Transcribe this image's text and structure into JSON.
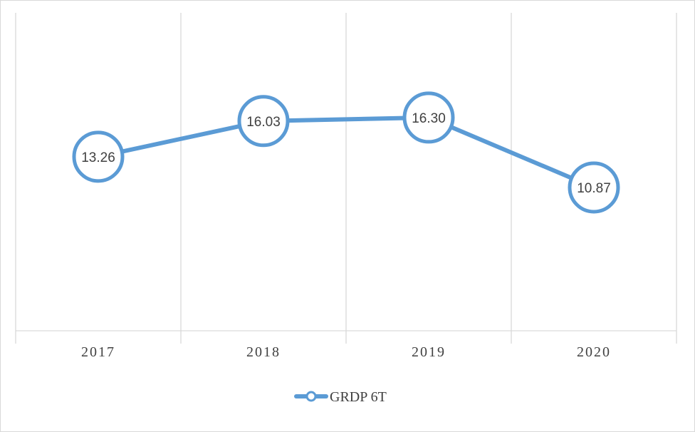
{
  "chart_data": {
    "type": "line",
    "categories": [
      "2017",
      "2018",
      "2019",
      "2020"
    ],
    "series": [
      {
        "name": "GRDP 6T",
        "values": [
          13.26,
          16.03,
          16.3,
          10.87
        ],
        "labels": [
          "13.26",
          "16.03",
          "16.30",
          "10.87"
        ]
      }
    ],
    "legend_position": "bottom",
    "grid": {
      "vertical": true,
      "horizontal": false
    },
    "colors": {
      "series": "#5b9bd5",
      "grid": "#d9d9d9",
      "text": "#404040"
    }
  }
}
